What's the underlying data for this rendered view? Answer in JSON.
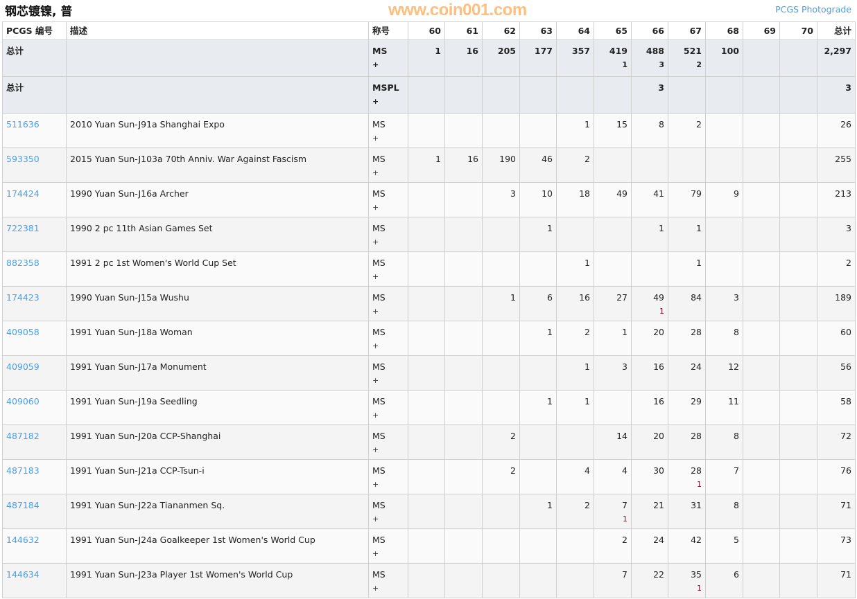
{
  "page": {
    "title": "钢芯镀镍, 普",
    "photograde_link": "PCGS Photograde",
    "watermark": "www.coin001.com"
  },
  "table": {
    "headers": [
      "PCGS 编号",
      "描述",
      "称号",
      "60",
      "61",
      "62",
      "63",
      "64",
      "65",
      "66",
      "67",
      "68",
      "69",
      "70",
      "总计"
    ],
    "totals": [
      {
        "label": "总计",
        "designation": "MS",
        "plus": "+",
        "values": [
          "1",
          "16",
          "205",
          "177",
          "357",
          "419",
          "488",
          "521",
          "100",
          "",
          ""
        ],
        "plus_values": [
          "",
          "",
          "",
          "",
          "",
          "1",
          "3",
          "2",
          "",
          "",
          ""
        ],
        "total": "2,297"
      },
      {
        "label": "总计",
        "designation": "MSPL",
        "plus": "+",
        "values": [
          "",
          "",
          "",
          "",
          "",
          "",
          "3",
          "",
          "",
          "",
          ""
        ],
        "plus_values": [
          "",
          "",
          "",
          "",
          "",
          "",
          "",
          "",
          "",
          "",
          ""
        ],
        "total": "3"
      }
    ],
    "rows": [
      {
        "id": "511636",
        "desc": "2010 Yuan Sun-J91a Shanghai Expo",
        "designation": "MS",
        "plus": "+",
        "values": [
          "",
          "",
          "",
          "",
          "1",
          "15",
          "8",
          "2",
          "",
          "",
          ""
        ],
        "plus_values": [
          "",
          "",
          "",
          "",
          "",
          "",
          "",
          "",
          "",
          "",
          ""
        ],
        "total": "26"
      },
      {
        "id": "593350",
        "desc": "2015 Yuan Sun-J103a 70th Anniv. War Against Fascism",
        "designation": "MS",
        "plus": "+",
        "values": [
          "1",
          "16",
          "190",
          "46",
          "2",
          "",
          "",
          "",
          "",
          "",
          ""
        ],
        "plus_values": [
          "",
          "",
          "",
          "",
          "",
          "",
          "",
          "",
          "",
          "",
          ""
        ],
        "total": "255"
      },
      {
        "id": "174424",
        "desc": "1990 Yuan Sun-J16a Archer",
        "designation": "MS",
        "plus": "+",
        "values": [
          "",
          "",
          "3",
          "10",
          "18",
          "49",
          "41",
          "79",
          "9",
          "",
          ""
        ],
        "plus_values": [
          "",
          "",
          "",
          "",
          "",
          "",
          "",
          "",
          "",
          "",
          ""
        ],
        "total": "213"
      },
      {
        "id": "722381",
        "desc": "1990 2 pc 11th Asian Games Set",
        "designation": "MS",
        "plus": "+",
        "values": [
          "",
          "",
          "",
          "1",
          "",
          "",
          "1",
          "1",
          "",
          "",
          ""
        ],
        "plus_values": [
          "",
          "",
          "",
          "",
          "",
          "",
          "",
          "",
          "",
          "",
          ""
        ],
        "total": "3"
      },
      {
        "id": "882358",
        "desc": "1991 2 pc 1st Women's World Cup Set",
        "designation": "MS",
        "plus": "+",
        "values": [
          "",
          "",
          "",
          "",
          "1",
          "",
          "",
          "1",
          "",
          "",
          ""
        ],
        "plus_values": [
          "",
          "",
          "",
          "",
          "",
          "",
          "",
          "",
          "",
          "",
          ""
        ],
        "total": "2"
      },
      {
        "id": "174423",
        "desc": "1990 Yuan Sun-J15a Wushu",
        "designation": "MS",
        "plus": "+",
        "values": [
          "",
          "",
          "1",
          "6",
          "16",
          "27",
          "49",
          "84",
          "3",
          "",
          ""
        ],
        "plus_values": [
          "",
          "",
          "",
          "",
          "",
          "",
          "1",
          "",
          "",
          "",
          ""
        ],
        "total": "189"
      },
      {
        "id": "409058",
        "desc": "1991 Yuan Sun-J18a Woman",
        "designation": "MS",
        "plus": "+",
        "values": [
          "",
          "",
          "",
          "1",
          "2",
          "1",
          "20",
          "28",
          "8",
          "",
          ""
        ],
        "plus_values": [
          "",
          "",
          "",
          "",
          "",
          "",
          "",
          "",
          "",
          "",
          ""
        ],
        "total": "60"
      },
      {
        "id": "409059",
        "desc": "1991 Yuan Sun-J17a Monument",
        "designation": "MS",
        "plus": "+",
        "values": [
          "",
          "",
          "",
          "",
          "1",
          "3",
          "16",
          "24",
          "12",
          "",
          ""
        ],
        "plus_values": [
          "",
          "",
          "",
          "",
          "",
          "",
          "",
          "",
          "",
          "",
          ""
        ],
        "total": "56"
      },
      {
        "id": "409060",
        "desc": "1991 Yuan Sun-J19a Seedling",
        "designation": "MS",
        "plus": "+",
        "values": [
          "",
          "",
          "",
          "1",
          "1",
          "",
          "16",
          "29",
          "11",
          "",
          ""
        ],
        "plus_values": [
          "",
          "",
          "",
          "",
          "",
          "",
          "",
          "",
          "",
          "",
          ""
        ],
        "total": "58"
      },
      {
        "id": "487182",
        "desc": "1991 Yuan Sun-J20a CCP-Shanghai",
        "designation": "MS",
        "plus": "+",
        "values": [
          "",
          "",
          "2",
          "",
          "",
          "14",
          "20",
          "28",
          "8",
          "",
          ""
        ],
        "plus_values": [
          "",
          "",
          "",
          "",
          "",
          "",
          "",
          "",
          "",
          "",
          ""
        ],
        "total": "72"
      },
      {
        "id": "487183",
        "desc": "1991 Yuan Sun-J21a CCP-Tsun-i",
        "designation": "MS",
        "plus": "+",
        "values": [
          "",
          "",
          "2",
          "",
          "4",
          "4",
          "30",
          "28",
          "7",
          "",
          ""
        ],
        "plus_values": [
          "",
          "",
          "",
          "",
          "",
          "",
          "",
          "1",
          "",
          "",
          ""
        ],
        "total": "76"
      },
      {
        "id": "487184",
        "desc": "1991 Yuan Sun-J22a Tiananmen Sq.",
        "designation": "MS",
        "plus": "+",
        "values": [
          "",
          "",
          "",
          "1",
          "2",
          "7",
          "21",
          "31",
          "8",
          "",
          ""
        ],
        "plus_values": [
          "",
          "",
          "",
          "",
          "",
          "1",
          "",
          "",
          "",
          "",
          ""
        ],
        "total": "71"
      },
      {
        "id": "144632",
        "desc": "1991 Yuan Sun-J24a Goalkeeper 1st Women's World Cup",
        "designation": "MS",
        "plus": "+",
        "values": [
          "",
          "",
          "",
          "",
          "",
          "2",
          "24",
          "42",
          "5",
          "",
          ""
        ],
        "plus_values": [
          "",
          "",
          "",
          "",
          "",
          "",
          "",
          "",
          "",
          "",
          ""
        ],
        "total": "73"
      },
      {
        "id": "144634",
        "desc": "1991 Yuan Sun-J23a Player 1st Women's World Cup",
        "designation": "MS",
        "plus": "+",
        "values": [
          "",
          "",
          "",
          "",
          "",
          "7",
          "22",
          "35",
          "6",
          "",
          ""
        ],
        "plus_values": [
          "",
          "",
          "",
          "",
          "",
          "",
          "",
          "1",
          "",
          "",
          ""
        ],
        "total": "71"
      }
    ]
  },
  "colors": {
    "link": "#4a9fe8",
    "totals_bg": "#e8ecf0",
    "watermark": "#ffaa50"
  }
}
